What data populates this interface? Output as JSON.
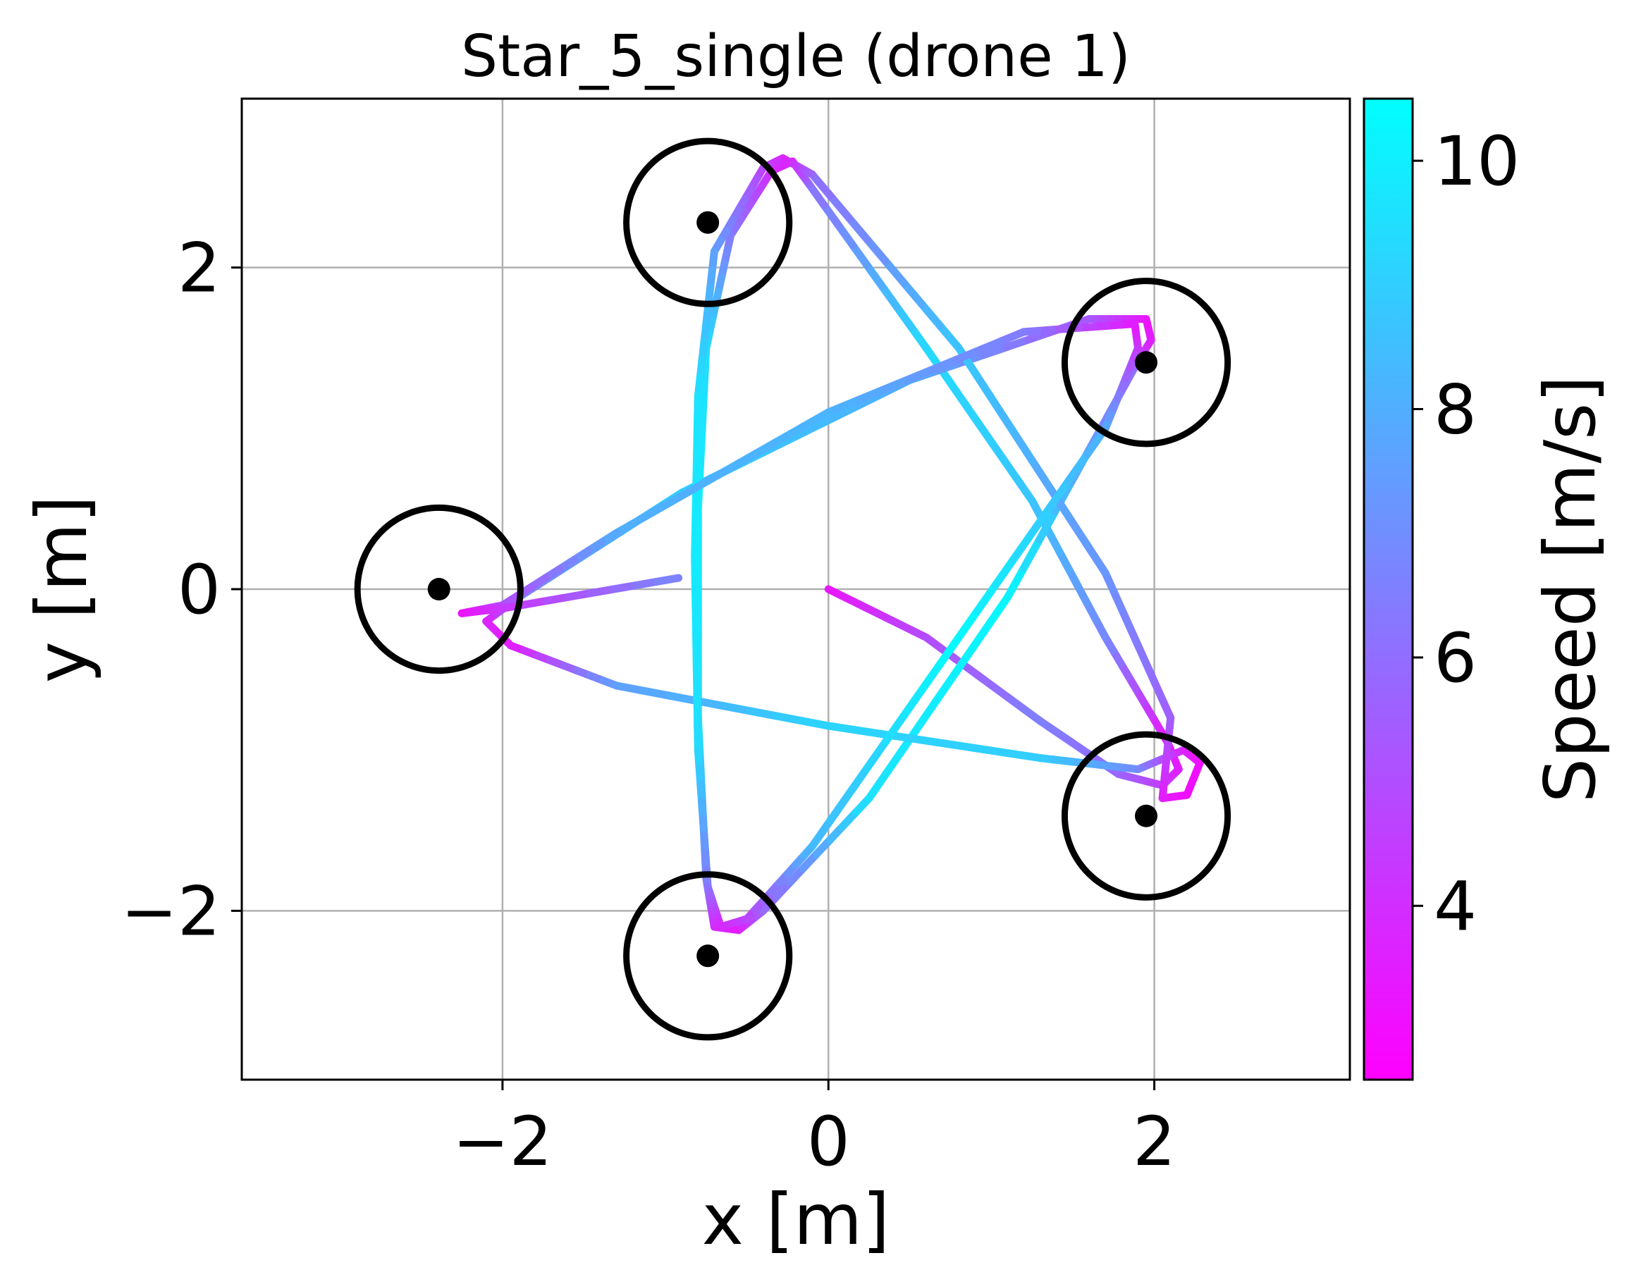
{
  "chart_data": {
    "type": "scatter",
    "title": "Star_5_single (drone 1)",
    "xlabel": "x [m]",
    "ylabel": "y [m]",
    "xlim": [
      -3.6,
      3.2
    ],
    "ylim": [
      -3.05,
      3.05
    ],
    "xticks": [
      -2,
      0,
      2
    ],
    "yticks": [
      -2,
      0,
      2
    ],
    "xtick_labels": [
      "−2",
      "0",
      "2"
    ],
    "ytick_labels": [
      "−2",
      "0",
      "2"
    ],
    "grid": true,
    "gates": [
      {
        "x": -0.74,
        "y": 2.28,
        "radius": 0.5
      },
      {
        "x": 1.95,
        "y": 1.41,
        "radius": 0.5
      },
      {
        "x": -2.39,
        "y": 0.0,
        "radius": 0.5
      },
      {
        "x": 1.95,
        "y": -1.41,
        "radius": 0.5
      },
      {
        "x": -0.74,
        "y": -2.28,
        "radius": 0.5
      }
    ],
    "trajectory": [
      {
        "x": 0.0,
        "y": 0.0,
        "speed": 3.2
      },
      {
        "x": 0.6,
        "y": -0.3,
        "speed": 4.9
      },
      {
        "x": 1.3,
        "y": -0.82,
        "speed": 6.6
      },
      {
        "x": 1.78,
        "y": -1.15,
        "speed": 5.8
      },
      {
        "x": 2.05,
        "y": -1.22,
        "speed": 4.6
      },
      {
        "x": 2.15,
        "y": -1.12,
        "speed": 3.6
      },
      {
        "x": 2.08,
        "y": -0.95,
        "speed": 3.2
      },
      {
        "x": 1.7,
        "y": -0.3,
        "speed": 6.8
      },
      {
        "x": 1.25,
        "y": 0.55,
        "speed": 8.7
      },
      {
        "x": 0.6,
        "y": 1.5,
        "speed": 9.4
      },
      {
        "x": -0.12,
        "y": 2.52,
        "speed": 6.1
      },
      {
        "x": -0.22,
        "y": 2.66,
        "speed": 3.6
      },
      {
        "x": -0.35,
        "y": 2.6,
        "speed": 3.9
      },
      {
        "x": -0.6,
        "y": 2.2,
        "speed": 6.3
      },
      {
        "x": -0.75,
        "y": 1.5,
        "speed": 9.4
      },
      {
        "x": -0.8,
        "y": 0.5,
        "speed": 10.0
      },
      {
        "x": -0.8,
        "y": -0.8,
        "speed": 9.6
      },
      {
        "x": -0.75,
        "y": -1.8,
        "speed": 6.8
      },
      {
        "x": -0.7,
        "y": -2.1,
        "speed": 4.0
      },
      {
        "x": -0.55,
        "y": -2.12,
        "speed": 3.4
      },
      {
        "x": -0.4,
        "y": -2.0,
        "speed": 5.6
      },
      {
        "x": 0.25,
        "y": -1.3,
        "speed": 9.6
      },
      {
        "x": 1.1,
        "y": -0.05,
        "speed": 10.3
      },
      {
        "x": 1.88,
        "y": 1.38,
        "speed": 5.9
      },
      {
        "x": 1.98,
        "y": 1.55,
        "speed": 3.6
      },
      {
        "x": 1.95,
        "y": 1.68,
        "speed": 3.2
      },
      {
        "x": 1.6,
        "y": 1.68,
        "speed": 5.2
      },
      {
        "x": 0.5,
        "y": 1.3,
        "speed": 7.9
      },
      {
        "x": -0.9,
        "y": 0.6,
        "speed": 9.1
      },
      {
        "x": -1.9,
        "y": -0.05,
        "speed": 6.6
      },
      {
        "x": -2.1,
        "y": -0.2,
        "speed": 3.8
      },
      {
        "x": -1.95,
        "y": -0.35,
        "speed": 3.4
      },
      {
        "x": -1.3,
        "y": -0.6,
        "speed": 7.5
      },
      {
        "x": 0.0,
        "y": -0.85,
        "speed": 9.2
      },
      {
        "x": 1.3,
        "y": -1.05,
        "speed": 9.0
      },
      {
        "x": 1.9,
        "y": -1.12,
        "speed": 7.0
      },
      {
        "x": 2.18,
        "y": -1.0,
        "speed": 3.8
      },
      {
        "x": 2.28,
        "y": -1.08,
        "speed": 3.2
      },
      {
        "x": 2.2,
        "y": -1.28,
        "speed": 3.0
      },
      {
        "x": 2.05,
        "y": -1.3,
        "speed": 3.4
      },
      {
        "x": 2.1,
        "y": -0.8,
        "speed": 5.5
      },
      {
        "x": 1.7,
        "y": 0.1,
        "speed": 7.2
      },
      {
        "x": 0.8,
        "y": 1.5,
        "speed": 8.8
      },
      {
        "x": -0.1,
        "y": 2.58,
        "speed": 6.0
      },
      {
        "x": -0.28,
        "y": 2.68,
        "speed": 3.7
      },
      {
        "x": -0.4,
        "y": 2.62,
        "speed": 4.6
      },
      {
        "x": -0.7,
        "y": 2.1,
        "speed": 7.5
      },
      {
        "x": -0.8,
        "y": 1.2,
        "speed": 9.6
      },
      {
        "x": -0.82,
        "y": 0.2,
        "speed": 9.9
      },
      {
        "x": -0.8,
        "y": -1.0,
        "speed": 9.4
      },
      {
        "x": -0.74,
        "y": -1.85,
        "speed": 6.4
      },
      {
        "x": -0.66,
        "y": -2.1,
        "speed": 3.8
      },
      {
        "x": -0.5,
        "y": -2.05,
        "speed": 4.6
      },
      {
        "x": -0.1,
        "y": -1.6,
        "speed": 8.3
      },
      {
        "x": 0.8,
        "y": -0.3,
        "speed": 10.4
      },
      {
        "x": 1.7,
        "y": 1.0,
        "speed": 8.0
      },
      {
        "x": 1.9,
        "y": 1.5,
        "speed": 4.5
      },
      {
        "x": 1.88,
        "y": 1.65,
        "speed": 3.3
      },
      {
        "x": 1.2,
        "y": 1.6,
        "speed": 6.4
      },
      {
        "x": 0.0,
        "y": 1.1,
        "speed": 8.2
      },
      {
        "x": -1.3,
        "y": 0.35,
        "speed": 8.0
      },
      {
        "x": -2.0,
        "y": -0.1,
        "speed": 5.0
      },
      {
        "x": -2.25,
        "y": -0.15,
        "speed": 3.2
      },
      {
        "x": -2.0,
        "y": -0.12,
        "speed": 4.2
      },
      {
        "x": -0.92,
        "y": 0.07,
        "speed": 6.8
      }
    ],
    "colorbar": {
      "label": "Speed [m/s]",
      "min": 2.6,
      "max": 10.5,
      "ticks": [
        4,
        6,
        8,
        10
      ],
      "tick_labels": [
        "4",
        "6",
        "8",
        "10"
      ],
      "colormap": "cool",
      "color_low": "#ff00ff",
      "color_high": "#00ffff"
    }
  }
}
